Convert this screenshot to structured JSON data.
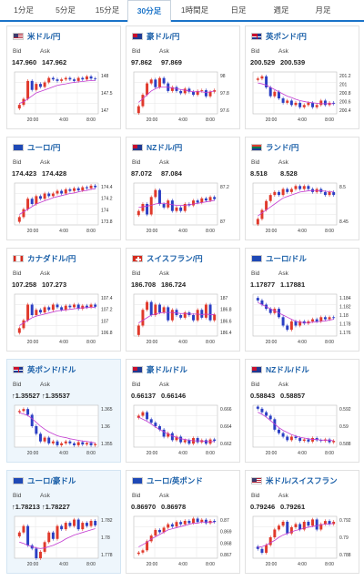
{
  "tabs": [
    {
      "label": "1分足",
      "active": false
    },
    {
      "label": "5分足",
      "active": false
    },
    {
      "label": "15分足",
      "active": false
    },
    {
      "label": "30分足",
      "active": true
    },
    {
      "label": "1時間足",
      "active": false
    },
    {
      "label": "日足",
      "active": false
    },
    {
      "label": "週足",
      "active": false
    },
    {
      "label": "月足",
      "active": false
    }
  ],
  "labels": {
    "bid": "Bid",
    "ask": "Ask"
  },
  "colors": {
    "accent": "#1a73c8",
    "up": "#e0392b",
    "down": "#2b3fc4",
    "ma": "#c33bd1",
    "highlight_bg": "#eef6fc"
  },
  "pairs": [
    {
      "name": "米ドル/円",
      "flag": "flag-us-icon",
      "bid": "147.960",
      "ask": "147.962",
      "highlight": false,
      "chart_data": {
        "type": "candlestick",
        "ylim": [
          146.8,
          148.2
        ],
        "yticks": [
          "148",
          "147.5",
          "147"
        ],
        "xticks": [
          "20:00",
          "4:00",
          "8:00"
        ],
        "close": [
          147.1,
          147.3,
          147.9,
          147.6,
          147.8,
          147.7,
          147.85,
          148.0,
          147.95,
          147.9,
          147.95,
          148.0,
          147.95,
          147.9,
          148.0,
          147.95,
          148.05,
          147.98,
          147.96
        ],
        "ma": [
          147.15,
          147.2,
          147.3,
          147.4,
          147.5,
          147.55,
          147.6,
          147.65,
          147.7,
          147.75,
          147.78,
          147.8,
          147.83,
          147.85,
          147.87,
          147.88,
          147.9,
          147.91,
          147.92
        ]
      }
    },
    {
      "name": "豪ドル/円",
      "flag": "flag-au-icon",
      "bid": "97.862",
      "ask": "97.869",
      "highlight": false,
      "chart_data": {
        "type": "candlestick",
        "ylim": [
          97.55,
          98.1
        ],
        "yticks": [
          "98",
          "97.8",
          "97.6"
        ],
        "xticks": [
          "20:00",
          "4:00",
          "8:00"
        ],
        "close": [
          97.65,
          97.8,
          97.95,
          98.0,
          97.9,
          98.02,
          97.95,
          97.85,
          97.9,
          97.85,
          97.82,
          97.88,
          97.84,
          97.8,
          97.85,
          97.86,
          97.78,
          97.84,
          97.86
        ],
        "ma": [
          97.7,
          97.75,
          97.8,
          97.85,
          97.88,
          97.9,
          97.9,
          97.9,
          97.89,
          97.88,
          97.87,
          97.86,
          97.85,
          97.84,
          97.84,
          97.84,
          97.83,
          97.84,
          97.85
        ]
      }
    },
    {
      "name": "英ポンド/円",
      "flag": "flag-gb-icon",
      "bid": "200.529",
      "ask": "200.539",
      "highlight": false,
      "chart_data": {
        "type": "candlestick",
        "ylim": [
          200.3,
          201.25
        ],
        "yticks": [
          "201.2",
          "201",
          "200.8",
          "200.6",
          "200.4"
        ],
        "xticks": [
          "20:00",
          "4:00",
          "8:00"
        ],
        "close": [
          201.1,
          201.15,
          200.9,
          200.7,
          200.8,
          200.65,
          200.55,
          200.6,
          200.5,
          200.55,
          200.45,
          200.5,
          200.55,
          200.45,
          200.5,
          200.6,
          200.5,
          200.55,
          200.53
        ],
        "ma": [
          201.0,
          200.98,
          200.95,
          200.9,
          200.85,
          200.8,
          200.75,
          200.7,
          200.67,
          200.63,
          200.6,
          200.58,
          200.56,
          200.55,
          200.54,
          200.53,
          200.53,
          200.53,
          200.53
        ]
      }
    },
    {
      "name": "ユーロ/円",
      "flag": "flag-eu-icon",
      "bid": "174.423",
      "ask": "174.428",
      "highlight": false,
      "chart_data": {
        "type": "candlestick",
        "ylim": [
          173.7,
          174.5
        ],
        "yticks": [
          "174.4",
          "174.2",
          "174",
          "173.8"
        ],
        "xticks": [
          "20:00",
          "4:00",
          "8:00"
        ],
        "close": [
          173.85,
          174.0,
          174.2,
          174.1,
          174.25,
          174.2,
          174.3,
          174.25,
          174.3,
          174.35,
          174.3,
          174.38,
          174.35,
          174.4,
          174.36,
          174.42,
          174.4,
          174.45,
          174.42
        ],
        "ma": [
          173.9,
          173.95,
          174.0,
          174.05,
          174.1,
          174.13,
          174.16,
          174.19,
          174.22,
          174.24,
          174.26,
          174.28,
          174.3,
          174.31,
          174.33,
          174.35,
          174.36,
          174.38,
          174.39
        ]
      }
    },
    {
      "name": "NZドル/円",
      "flag": "flag-nz-icon",
      "bid": "87.072",
      "ask": "87.084",
      "highlight": false,
      "chart_data": {
        "type": "candlestick",
        "ylim": [
          86.7,
          87.3
        ],
        "yticks": [
          "87.2",
          "87"
        ],
        "xticks": [
          "20:00",
          "4:00",
          "8:00"
        ],
        "close": [
          86.9,
          87.0,
          86.85,
          87.1,
          87.2,
          87.0,
          86.95,
          87.05,
          86.9,
          86.95,
          86.9,
          87.0,
          86.98,
          87.05,
          87.02,
          87.08,
          87.05,
          87.1,
          87.07
        ],
        "ma": [
          86.95,
          86.96,
          86.97,
          86.98,
          87.0,
          87.01,
          87.01,
          87.0,
          86.99,
          86.98,
          86.98,
          86.98,
          86.99,
          87.0,
          87.01,
          87.02,
          87.03,
          87.04,
          87.05
        ]
      }
    },
    {
      "name": "ランド/円",
      "flag": "flag-za-icon",
      "bid": "8.518",
      "ask": "8.528",
      "highlight": false,
      "chart_data": {
        "type": "candlestick",
        "ylim": [
          8.42,
          8.56
        ],
        "yticks": [
          "8.5",
          "8.45"
        ],
        "xticks": [
          "20:00",
          "4:00",
          "8:00"
        ],
        "close": [
          8.44,
          8.47,
          8.5,
          8.52,
          8.53,
          8.52,
          8.54,
          8.53,
          8.54,
          8.55,
          8.54,
          8.55,
          8.54,
          8.53,
          8.54,
          8.53,
          8.52,
          8.53,
          8.52
        ],
        "ma": [
          8.45,
          8.46,
          8.47,
          8.48,
          8.49,
          8.5,
          8.51,
          8.515,
          8.52,
          8.525,
          8.53,
          8.532,
          8.534,
          8.535,
          8.535,
          8.534,
          8.533,
          8.531,
          8.53
        ]
      }
    },
    {
      "name": "カナダドル/円",
      "flag": "flag-ca-icon",
      "bid": "107.258",
      "ask": "107.273",
      "highlight": false,
      "chart_data": {
        "type": "candlestick",
        "ylim": [
          106.7,
          107.5
        ],
        "yticks": [
          "107.4",
          "107.2",
          "107",
          "106.8"
        ],
        "xticks": [
          "20:00",
          "4:00",
          "8:00"
        ],
        "close": [
          106.85,
          107.0,
          107.3,
          107.1,
          107.2,
          107.15,
          107.25,
          107.2,
          107.3,
          107.25,
          107.2,
          107.28,
          107.25,
          107.3,
          107.22,
          107.28,
          107.25,
          107.3,
          107.26
        ],
        "ma": [
          106.9,
          106.95,
          107.0,
          107.05,
          107.08,
          107.1,
          107.12,
          107.14,
          107.16,
          107.18,
          107.19,
          107.2,
          107.21,
          107.22,
          107.23,
          107.24,
          107.24,
          107.25,
          107.25
        ]
      }
    },
    {
      "name": "スイスフラン/円",
      "flag": "flag-ch-icon",
      "bid": "186.708",
      "ask": "186.724",
      "highlight": false,
      "chart_data": {
        "type": "candlestick",
        "ylim": [
          186.3,
          187.1
        ],
        "yticks": [
          "187",
          "186.8",
          "186.6",
          "186.4"
        ],
        "xticks": [
          "20:00",
          "4:00",
          "8:00"
        ],
        "close": [
          186.5,
          186.8,
          186.95,
          186.7,
          186.9,
          186.75,
          186.85,
          186.6,
          186.8,
          186.7,
          186.65,
          186.75,
          186.7,
          186.6,
          186.8,
          186.65,
          186.9,
          186.6,
          186.71
        ],
        "ma": [
          186.55,
          186.6,
          186.65,
          186.7,
          186.72,
          186.74,
          186.75,
          186.75,
          186.75,
          186.74,
          186.73,
          186.73,
          186.72,
          186.72,
          186.72,
          186.71,
          186.72,
          186.71,
          186.71
        ]
      }
    },
    {
      "name": "ユーロ/ドル",
      "flag": "flag-eu-icon",
      "bid": "1.17877",
      "ask": "1.17881",
      "highlight": false,
      "chart_data": {
        "type": "candlestick",
        "ylim": [
          1.1745,
          1.1845
        ],
        "yticks": [
          "1.184",
          "1.182",
          "1.18",
          "1.178",
          "1.176"
        ],
        "xticks": [
          "20:00",
          "4:00",
          "8:00"
        ],
        "close": [
          1.183,
          1.182,
          1.181,
          1.18,
          1.181,
          1.179,
          1.177,
          1.176,
          1.178,
          1.177,
          1.178,
          1.1775,
          1.178,
          1.1785,
          1.178,
          1.179,
          1.1785,
          1.179,
          1.1788
        ],
        "ma": [
          1.1825,
          1.182,
          1.1815,
          1.181,
          1.1805,
          1.18,
          1.1795,
          1.179,
          1.1785,
          1.178,
          1.1778,
          1.1777,
          1.1777,
          1.1778,
          1.1779,
          1.178,
          1.1781,
          1.1783,
          1.1785
        ]
      }
    },
    {
      "name": "英ポンド/ドル",
      "flag": "flag-gb-icon",
      "bid": "↑1.35527",
      "ask": "↑1.35537",
      "highlight": true,
      "chart_data": {
        "type": "candlestick",
        "ylim": [
          1.3545,
          1.3655
        ],
        "yticks": [
          "1.365",
          "1.36",
          "1.355"
        ],
        "xticks": [
          "20:00",
          "4:00",
          "8:00"
        ],
        "close": [
          1.364,
          1.3645,
          1.363,
          1.36,
          1.358,
          1.356,
          1.357,
          1.3555,
          1.356,
          1.355,
          1.3555,
          1.356,
          1.3555,
          1.355,
          1.3558,
          1.3552,
          1.3556,
          1.355,
          1.3553
        ],
        "ma": [
          1.3635,
          1.3632,
          1.3628,
          1.362,
          1.361,
          1.36,
          1.3592,
          1.3585,
          1.358,
          1.3575,
          1.3572,
          1.357,
          1.3567,
          1.3565,
          1.3563,
          1.3561,
          1.356,
          1.3558,
          1.3556
        ]
      }
    },
    {
      "name": "豪ドル/ドル",
      "flag": "flag-au-icon",
      "bid": "0.66137",
      "ask": "0.66146",
      "highlight": false,
      "chart_data": {
        "type": "candlestick",
        "ylim": [
          0.6605,
          0.6665
        ],
        "yticks": [
          "0.666",
          "0.664",
          "0.662"
        ],
        "xticks": [
          "20:00",
          "4:00",
          "8:00"
        ],
        "close": [
          0.665,
          0.6655,
          0.6645,
          0.664,
          0.6635,
          0.663,
          0.662,
          0.6625,
          0.6615,
          0.662,
          0.6612,
          0.6615,
          0.661,
          0.6618,
          0.6612,
          0.6615,
          0.661,
          0.6616,
          0.6614
        ],
        "ma": [
          0.6648,
          0.6645,
          0.6642,
          0.6638,
          0.6634,
          0.663,
          0.6627,
          0.6624,
          0.6621,
          0.6619,
          0.6617,
          0.6616,
          0.6615,
          0.6614,
          0.6614,
          0.6614,
          0.6613,
          0.6613,
          0.6613
        ]
      }
    },
    {
      "name": "NZドル/ドル",
      "flag": "flag-nz-icon",
      "bid": "0.58843",
      "ask": "0.58857",
      "highlight": false,
      "chart_data": {
        "type": "candlestick",
        "ylim": [
          0.5875,
          0.5935
        ],
        "yticks": [
          "0.592",
          "0.59",
          "0.588"
        ],
        "xticks": [
          "20:00",
          "4:00",
          "8:00"
        ],
        "close": [
          0.593,
          0.5925,
          0.592,
          0.5915,
          0.59,
          0.5895,
          0.589,
          0.5885,
          0.589,
          0.5888,
          0.5884,
          0.5886,
          0.5883,
          0.5888,
          0.5885,
          0.5884,
          0.5886,
          0.5882,
          0.5884
        ],
        "ma": [
          0.5925,
          0.5922,
          0.5918,
          0.5913,
          0.5908,
          0.5903,
          0.5899,
          0.5896,
          0.5893,
          0.5891,
          0.5889,
          0.5888,
          0.5887,
          0.5886,
          0.5886,
          0.5885,
          0.5885,
          0.5885,
          0.5884
        ]
      }
    },
    {
      "name": "ユーロ/豪ドル",
      "flag": "flag-eu-icon",
      "bid": "↑1.78213",
      "ask": "↑1.78227",
      "highlight": true,
      "chart_data": {
        "type": "candlestick",
        "ylim": [
          1.777,
          1.7835
        ],
        "yticks": [
          "1.782",
          "1.78",
          "1.778"
        ],
        "xticks": [
          "20:00",
          "4:00",
          "8:00"
        ],
        "close": [
          1.781,
          1.782,
          1.779,
          1.7785,
          1.777,
          1.778,
          1.7795,
          1.781,
          1.78,
          1.782,
          1.7815,
          1.7825,
          1.782,
          1.783,
          1.7815,
          1.7825,
          1.782,
          1.7828,
          1.7821
        ],
        "ma": [
          1.7795,
          1.7793,
          1.779,
          1.7788,
          1.7786,
          1.7785,
          1.7786,
          1.7788,
          1.779,
          1.7793,
          1.7796,
          1.78,
          1.7803,
          1.7806,
          1.7808,
          1.781,
          1.7812,
          1.7814,
          1.7816
        ]
      }
    },
    {
      "name": "ユーロ/英ポンド",
      "flag": "flag-eu-icon",
      "bid": "0.86970",
      "ask": "0.86978",
      "highlight": false,
      "chart_data": {
        "type": "candlestick",
        "ylim": [
          0.8665,
          0.8702
        ],
        "yticks": [
          "0.87",
          "0.869",
          "0.868",
          "0.867"
        ],
        "xticks": [
          "20:00",
          "4:00",
          "8:00"
        ],
        "close": [
          0.867,
          0.8672,
          0.868,
          0.8685,
          0.869,
          0.8688,
          0.8692,
          0.8695,
          0.8693,
          0.8697,
          0.8695,
          0.8698,
          0.8696,
          0.87,
          0.8697,
          0.8699,
          0.8696,
          0.8698,
          0.8697
        ],
        "ma": [
          0.8675,
          0.8677,
          0.8679,
          0.8682,
          0.8684,
          0.8686,
          0.8688,
          0.869,
          0.8691,
          0.8692,
          0.8693,
          0.8694,
          0.8695,
          0.8696,
          0.8696,
          0.8697,
          0.8697,
          0.8697,
          0.8697
        ]
      }
    },
    {
      "name": "米ドル/スイスフラン",
      "flag": "flag-us-icon",
      "bid": "0.79246",
      "ask": "0.79261",
      "highlight": false,
      "chart_data": {
        "type": "candlestick",
        "ylim": [
          0.7878,
          0.7932
        ],
        "yticks": [
          "0.792",
          "0.79",
          "0.788"
        ],
        "xticks": [
          "20:00",
          "4:00",
          "8:00"
        ],
        "close": [
          0.789,
          0.7885,
          0.7895,
          0.7905,
          0.7915,
          0.792,
          0.7925,
          0.791,
          0.7918,
          0.7922,
          0.7915,
          0.7925,
          0.792,
          0.7928,
          0.7915,
          0.7922,
          0.7926,
          0.7922,
          0.7925
        ],
        "ma": [
          0.7892,
          0.7893,
          0.7895,
          0.7898,
          0.7901,
          0.7905,
          0.7908,
          0.791,
          0.7912,
          0.7914,
          0.7915,
          0.7917,
          0.7918,
          0.7919,
          0.792,
          0.7921,
          0.7922,
          0.7922,
          0.7923
        ]
      }
    }
  ]
}
